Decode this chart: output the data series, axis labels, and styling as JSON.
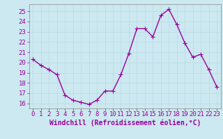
{
  "x": [
    0,
    1,
    2,
    3,
    4,
    5,
    6,
    7,
    8,
    9,
    10,
    11,
    12,
    13,
    14,
    15,
    16,
    17,
    18,
    19,
    20,
    21,
    22,
    23
  ],
  "y": [
    20.3,
    19.7,
    19.3,
    18.8,
    16.8,
    16.3,
    16.1,
    15.9,
    16.3,
    17.2,
    17.2,
    18.8,
    20.9,
    23.3,
    23.3,
    22.5,
    24.6,
    25.2,
    23.7,
    21.9,
    20.5,
    20.8,
    19.3,
    17.6
  ],
  "line_color": "#990099",
  "marker": "+",
  "marker_size": 4,
  "xlabel": "Windchill (Refroidissement éolien,°C)",
  "xlabel_color": "#990099",
  "xlabel_fontsize": 7,
  "xtick_labels": [
    "0",
    "1",
    "2",
    "3",
    "4",
    "5",
    "6",
    "7",
    "8",
    "9",
    "10",
    "11",
    "12",
    "13",
    "14",
    "15",
    "16",
    "17",
    "18",
    "19",
    "20",
    "21",
    "22",
    "23"
  ],
  "ytick_labels": [
    "16",
    "17",
    "18",
    "19",
    "20",
    "21",
    "22",
    "23",
    "24",
    "25"
  ],
  "yticks": [
    16,
    17,
    18,
    19,
    20,
    21,
    22,
    23,
    24,
    25
  ],
  "ylim": [
    15.5,
    25.7
  ],
  "xlim": [
    -0.5,
    23.5
  ],
  "background_color": "#cce8f0",
  "grid_color": "#bbdde8",
  "tick_color": "#990099",
  "tick_fontsize": 6.5,
  "line_width": 1.0,
  "fig_width": 3.2,
  "fig_height": 2.0,
  "dpi": 100
}
